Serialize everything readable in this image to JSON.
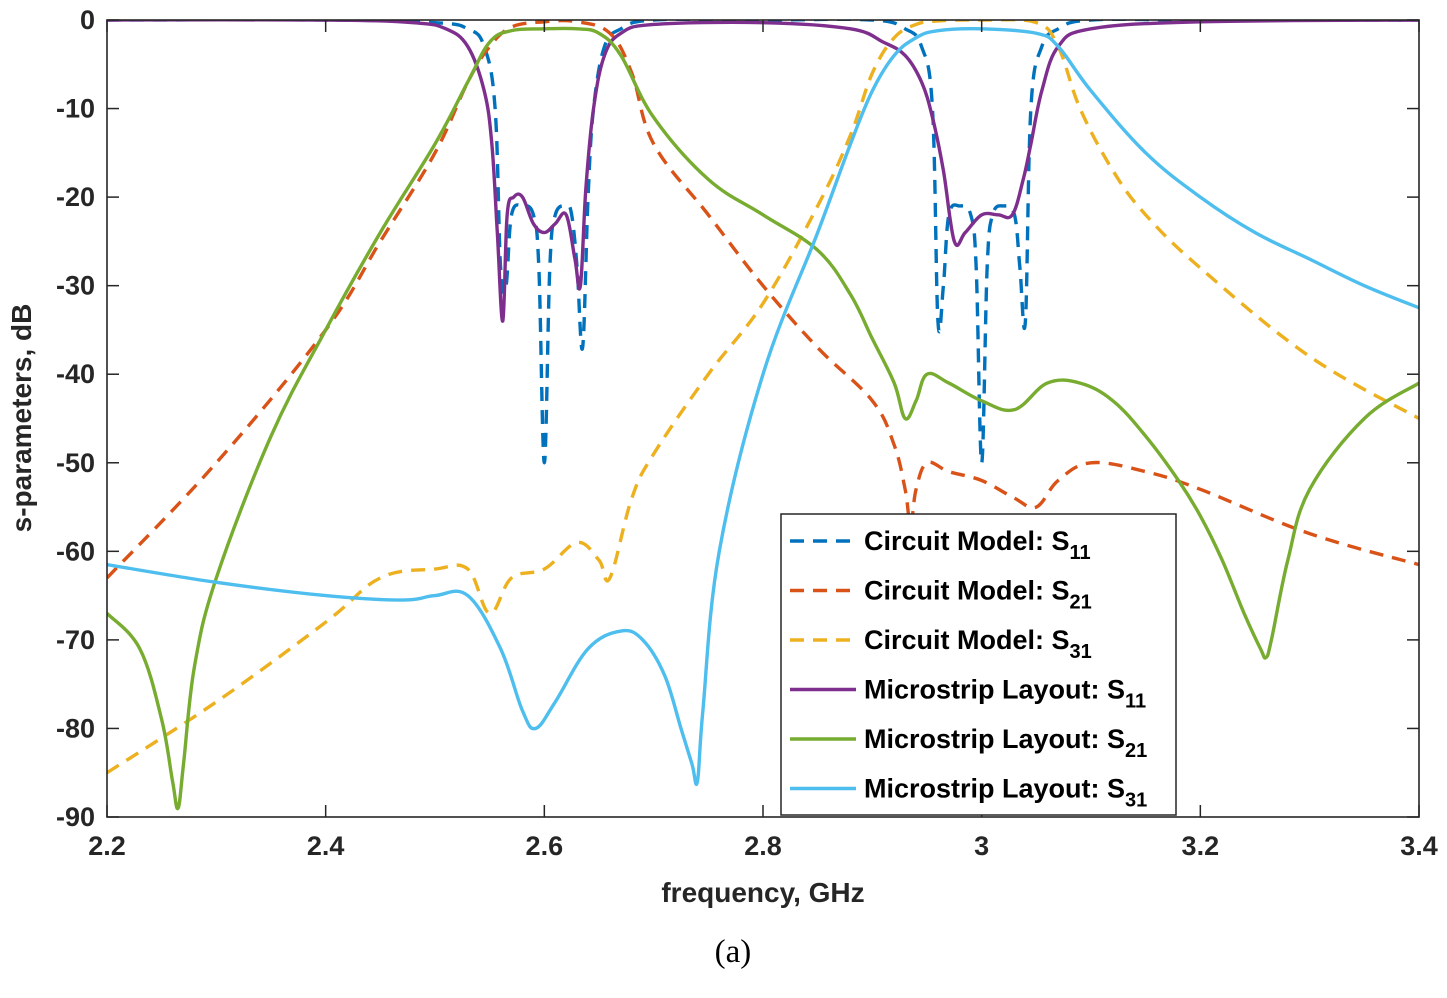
{
  "caption": "(a)",
  "chart_data": {
    "type": "line",
    "title": "",
    "xlabel": "frequency, GHz",
    "ylabel": "s-parameters, dB",
    "xlim": [
      2.2,
      3.4
    ],
    "ylim": [
      -90,
      0
    ],
    "xticks": [
      2.2,
      2.4,
      2.6,
      2.8,
      3.0,
      3.2,
      3.4
    ],
    "xtick_labels": [
      "2.2",
      "2.4",
      "2.6",
      "2.8",
      "3",
      "3.2",
      "3.4"
    ],
    "yticks": [
      0,
      -10,
      -20,
      -30,
      -40,
      -50,
      -60,
      -70,
      -80,
      -90
    ],
    "ytick_labels": [
      "0",
      "-10",
      "-20",
      "-30",
      "-40",
      "-50",
      "-60",
      "-70",
      "-80",
      "-90"
    ],
    "grid": false,
    "legend_position": "bottom-right",
    "series": [
      {
        "name": "Circuit Model: S11",
        "label_main": "Circuit Model: S",
        "label_sub": "11",
        "color": "#0072BD",
        "dash": true,
        "x": [
          2.2,
          2.4,
          2.5,
          2.53,
          2.545,
          2.555,
          2.56,
          2.565,
          2.57,
          2.58,
          2.59,
          2.595,
          2.6,
          2.605,
          2.61,
          2.62,
          2.625,
          2.63,
          2.635,
          2.64,
          2.645,
          2.655,
          2.67,
          2.7,
          2.8,
          2.9,
          2.93,
          2.945,
          2.955,
          2.96,
          2.965,
          2.97,
          2.98,
          2.99,
          2.995,
          3.0,
          3.005,
          3.01,
          3.02,
          3.03,
          3.035,
          3.04,
          3.045,
          3.055,
          3.07,
          3.1,
          3.2,
          3.4
        ],
        "y": [
          0,
          0,
          -0.3,
          -1,
          -3,
          -10,
          -28,
          -30,
          -22,
          -21,
          -22,
          -28,
          -50,
          -28,
          -22,
          -21,
          -22,
          -28,
          -37,
          -20,
          -10,
          -3,
          -1,
          0,
          0,
          0,
          -1,
          -3,
          -10,
          -34,
          -30,
          -22,
          -21,
          -22,
          -28,
          -50,
          -28,
          -22,
          -21,
          -22,
          -28,
          -34,
          -10,
          -3,
          -1,
          0,
          0,
          0
        ]
      },
      {
        "name": "Circuit Model: S21",
        "label_main": "Circuit Model: S",
        "label_sub": "21",
        "color": "#D95319",
        "dash": true,
        "x": [
          2.2,
          2.3,
          2.4,
          2.45,
          2.5,
          2.53,
          2.55,
          2.57,
          2.6,
          2.63,
          2.66,
          2.68,
          2.7,
          2.75,
          2.8,
          2.85,
          2.9,
          2.92,
          2.93,
          2.935,
          2.94,
          2.95,
          2.97,
          3.0,
          3.03,
          3.05,
          3.07,
          3.1,
          3.15,
          3.2,
          3.3,
          3.4
        ],
        "y": [
          -63,
          -50,
          -35,
          -25,
          -15,
          -7,
          -3,
          -0.8,
          -0.2,
          -0.2,
          -1.5,
          -6,
          -14,
          -22,
          -30,
          -37,
          -43,
          -48,
          -53,
          -57,
          -53,
          -50,
          -51,
          -52,
          -54,
          -55,
          -52,
          -50,
          -51,
          -53,
          -58,
          -61.5
        ]
      },
      {
        "name": "Circuit Model: S31",
        "label_main": "Circuit Model: S",
        "label_sub": "31",
        "color": "#EDB120",
        "dash": true,
        "x": [
          2.2,
          2.3,
          2.4,
          2.45,
          2.5,
          2.53,
          2.55,
          2.57,
          2.6,
          2.63,
          2.65,
          2.66,
          2.68,
          2.7,
          2.75,
          2.8,
          2.85,
          2.88,
          2.9,
          2.92,
          2.94,
          2.96,
          3.0,
          3.05,
          3.07,
          3.09,
          3.12,
          3.15,
          3.2,
          3.3,
          3.4
        ],
        "y": [
          -85,
          -77,
          -68,
          -63,
          -62,
          -62,
          -67,
          -63,
          -62,
          -59,
          -61,
          -63,
          -54,
          -49,
          -40,
          -32,
          -21,
          -13,
          -6,
          -2,
          -0.5,
          -0.1,
          0,
          -0.3,
          -3,
          -10,
          -17,
          -22,
          -28,
          -38,
          -45
        ]
      },
      {
        "name": "Microstrip Layout: S11",
        "label_main": "Microstrip Layout: S",
        "label_sub": "11",
        "color": "#7E2F8E",
        "dash": false,
        "x": [
          2.2,
          2.4,
          2.48,
          2.51,
          2.53,
          2.545,
          2.552,
          2.557,
          2.562,
          2.566,
          2.572,
          2.58,
          2.59,
          2.6,
          2.61,
          2.62,
          2.628,
          2.633,
          2.638,
          2.645,
          2.655,
          2.67,
          2.7,
          2.8,
          2.88,
          2.91,
          2.93,
          2.945,
          2.955,
          2.965,
          2.975,
          2.985,
          3.0,
          3.015,
          3.028,
          3.038,
          3.045,
          3.055,
          3.07,
          3.1,
          3.2,
          3.4
        ],
        "y": [
          0,
          0,
          -0.3,
          -1,
          -3,
          -8,
          -14,
          -24,
          -34,
          -22,
          -20,
          -20,
          -23,
          -24,
          -23,
          -22,
          -27,
          -30,
          -19,
          -10,
          -4,
          -1.5,
          -0.5,
          -0.3,
          -1,
          -2.5,
          -4,
          -7,
          -11,
          -17,
          -25,
          -24,
          -22,
          -22,
          -22,
          -18,
          -14,
          -8,
          -3,
          -1,
          -0.2,
          0
        ]
      },
      {
        "name": "Microstrip Layout: S21",
        "label_main": "Microstrip Layout: S",
        "label_sub": "21",
        "color": "#77AC30",
        "dash": false,
        "x": [
          2.2,
          2.23,
          2.25,
          2.26,
          2.265,
          2.27,
          2.28,
          2.3,
          2.35,
          2.4,
          2.45,
          2.5,
          2.53,
          2.55,
          2.57,
          2.6,
          2.63,
          2.65,
          2.67,
          2.7,
          2.75,
          2.8,
          2.85,
          2.88,
          2.9,
          2.92,
          2.93,
          2.94,
          2.95,
          2.97,
          3.0,
          3.03,
          3.06,
          3.09,
          3.12,
          3.15,
          3.18,
          3.2,
          3.22,
          3.24,
          3.255,
          3.26,
          3.265,
          3.28,
          3.3,
          3.35,
          3.4
        ],
        "y": [
          -67,
          -71,
          -79,
          -86,
          -89,
          -84,
          -73,
          -63,
          -47,
          -35,
          -24,
          -14,
          -7,
          -2.5,
          -1.2,
          -1,
          -1,
          -1.5,
          -4,
          -11,
          -18,
          -22,
          -26,
          -31,
          -36,
          -41,
          -45,
          -43,
          -40,
          -41,
          -43,
          -44,
          -41,
          -41,
          -43,
          -47,
          -52,
          -56,
          -61,
          -67,
          -71,
          -72,
          -70,
          -61,
          -53,
          -45,
          -41
        ]
      },
      {
        "name": "Microstrip Layout: S31",
        "label_main": "Microstrip Layout: S",
        "label_sub": "31",
        "color": "#4DBEEE",
        "dash": false,
        "x": [
          2.2,
          2.3,
          2.4,
          2.47,
          2.5,
          2.53,
          2.56,
          2.58,
          2.592,
          2.61,
          2.64,
          2.67,
          2.69,
          2.71,
          2.725,
          2.735,
          2.74,
          2.745,
          2.76,
          2.8,
          2.85,
          2.88,
          2.9,
          2.92,
          2.94,
          2.96,
          3.0,
          3.05,
          3.07,
          3.1,
          3.15,
          3.2,
          3.25,
          3.3,
          3.35,
          3.4
        ],
        "y": [
          -61.5,
          -63.5,
          -65,
          -65.5,
          -65,
          -65,
          -71,
          -78,
          -80,
          -77,
          -71,
          -69,
          -70,
          -74,
          -80,
          -84,
          -86,
          -78,
          -60,
          -40,
          -24,
          -14,
          -8,
          -4,
          -2,
          -1.2,
          -1,
          -1.5,
          -3,
          -8,
          -15,
          -20,
          -24,
          -27,
          -30,
          -32.5
        ]
      }
    ]
  }
}
